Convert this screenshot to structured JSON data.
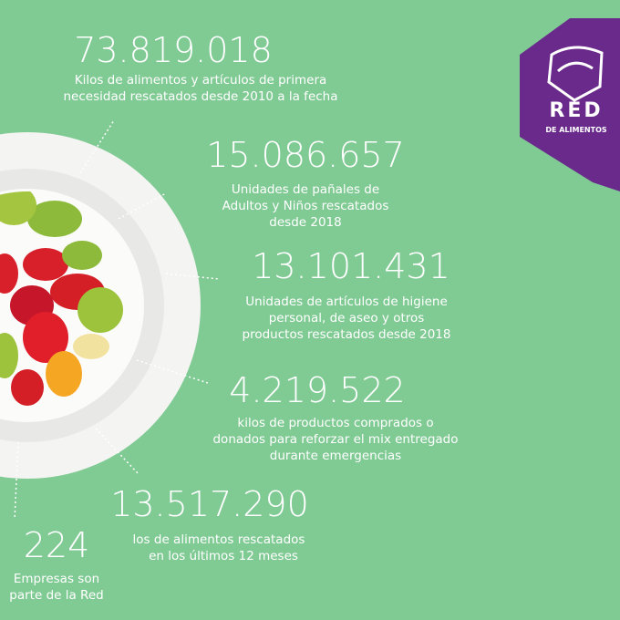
{
  "logo": {
    "name": "RED",
    "subtitle": "DE ALIMENTOS"
  },
  "stats": [
    {
      "number": "73.819.018",
      "lines": [
        "Kilos de alimentos y artículos de primera",
        "necesidad rescatados desde 2010 a la fecha"
      ]
    },
    {
      "number": "15.086.657",
      "lines": [
        "Unidades de pañales de",
        "Adultos y Niños rescatados",
        "desde 2018"
      ]
    },
    {
      "number": "13.101.431",
      "lines": [
        "Unidades de artículos de higiene",
        "personal, de aseo y otros",
        "productos rescatados desde 2018"
      ]
    },
    {
      "number": "4.219.522",
      "lines": [
        "kilos de productos comprados o",
        "donados para reforzar el mix entregado",
        "durante emergencias"
      ]
    },
    {
      "number": "13.517.290",
      "lines": [
        "los de alimentos rescatados",
        "en los últimos 12 meses"
      ]
    },
    {
      "number": "224",
      "lines": [
        "Empresas son",
        "parte de la Red"
      ]
    }
  ]
}
